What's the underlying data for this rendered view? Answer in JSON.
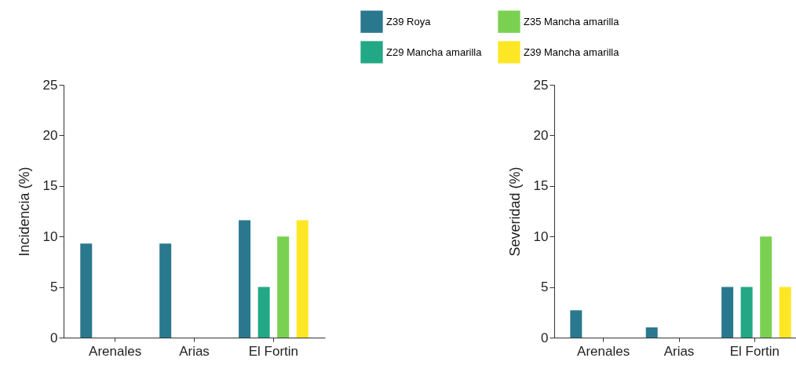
{
  "chart_data": [
    {
      "type": "bar",
      "ylabel": "Incidencia  (%)",
      "categories": [
        "Arenales",
        "Arias",
        "El Fortin"
      ],
      "ylim": [
        0,
        25
      ],
      "yticks": [
        0,
        5,
        10,
        15,
        20,
        25
      ],
      "grid": false,
      "series": [
        {
          "color": "#2a788e",
          "values": [
            9.3,
            9.3,
            11.6
          ]
        },
        {
          "color": "#22a884",
          "values": [
            null,
            null,
            5
          ]
        },
        {
          "color": "#7ad151",
          "values": [
            null,
            null,
            10
          ]
        },
        {
          "color": "#fde725",
          "values": [
            null,
            null,
            11.6
          ]
        }
      ]
    },
    {
      "type": "bar",
      "ylabel": "Severidad  (%)",
      "categories": [
        "Arenales",
        "Arias",
        "El Fortin"
      ],
      "ylim": [
        0,
        25
      ],
      "yticks": [
        0,
        5,
        10,
        15,
        20,
        25
      ],
      "grid": false,
      "legend": "top",
      "series": [
        {
          "name": "Z39 Roya",
          "color": "#2a788e",
          "values": [
            2.7,
            1.0,
            5
          ]
        },
        {
          "name": "Z29 Mancha amarilla",
          "color": "#22a884",
          "values": [
            null,
            null,
            5
          ]
        },
        {
          "name": "Z35 Mancha amarilla",
          "color": "#7ad151",
          "values": [
            null,
            null,
            10
          ]
        },
        {
          "name": "Z39 Mancha amarilla",
          "color": "#fde725",
          "values": [
            null,
            null,
            5
          ]
        }
      ]
    }
  ]
}
